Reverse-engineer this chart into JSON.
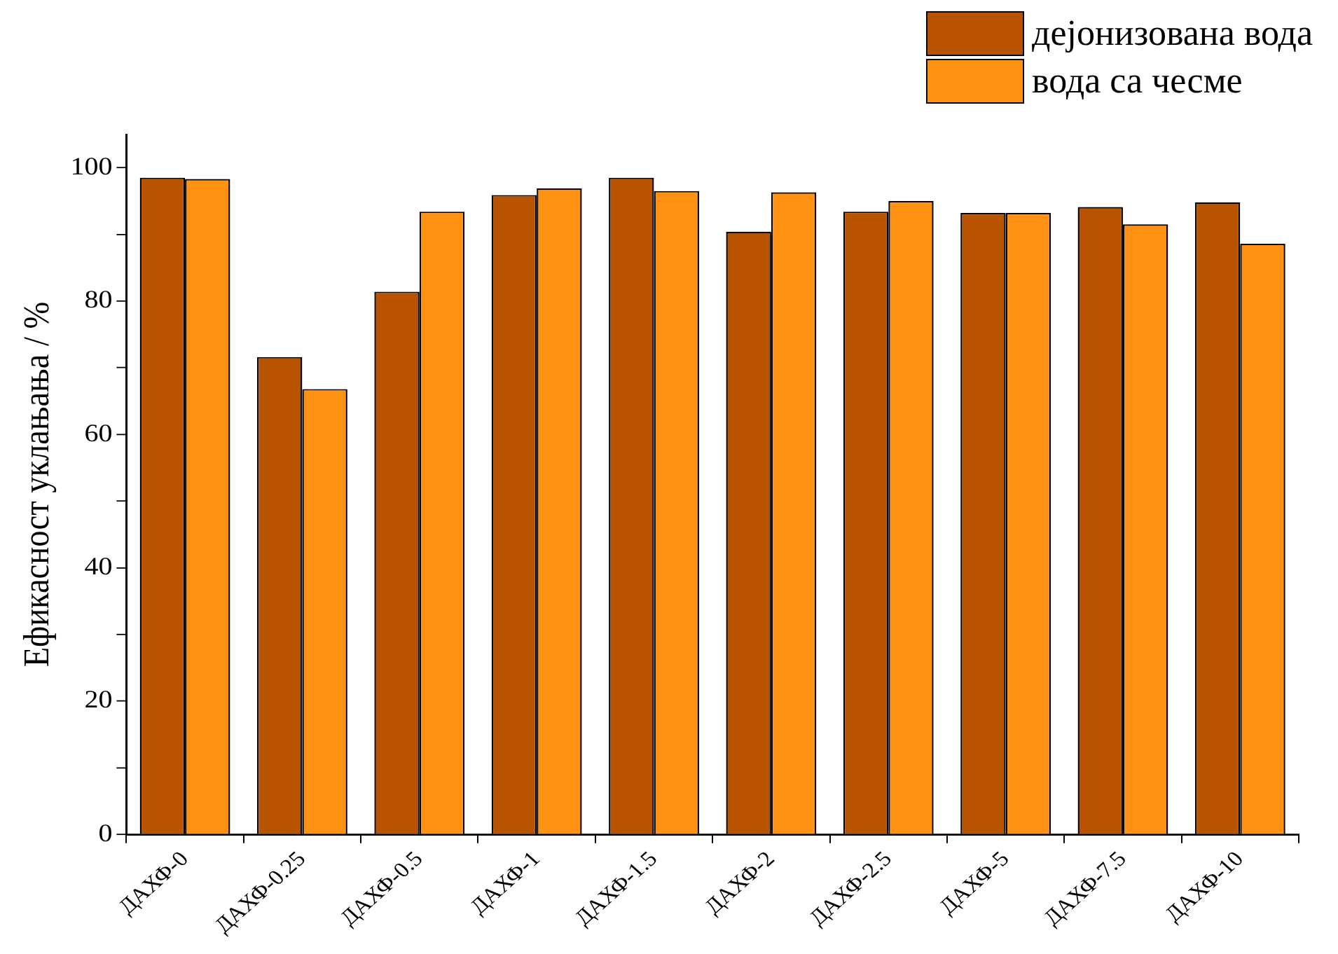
{
  "chart_data": {
    "type": "bar",
    "ylabel": "Ефикасност уклањања / %",
    "categories": [
      "ДАХФ-0",
      "ДАХФ-0.25",
      "ДАХФ-0.5",
      "ДАХФ-1",
      "ДАХФ-1.5",
      "ДАХФ-2",
      "ДАХФ-2.5",
      "ДАХФ-5",
      "ДАХФ-7.5",
      "ДАХФ-10"
    ],
    "series": [
      {
        "name": "дејонизована вода",
        "color": "#b85400",
        "values": [
          98.5,
          71.6,
          81.4,
          95.9,
          98.5,
          90.4,
          93.4,
          93.2,
          94.1,
          94.8
        ]
      },
      {
        "name": "вода са чесме",
        "color": "#ff9212",
        "values": [
          98.3,
          66.8,
          93.4,
          96.9,
          96.5,
          96.3,
          95.0,
          93.2,
          91.5,
          88.6
        ]
      }
    ],
    "ylim": [
      0,
      105
    ],
    "yticks": [
      0,
      {
        "value": 10,
        "label": null
      },
      20,
      {
        "value": 30,
        "label": null
      },
      40,
      {
        "value": 50,
        "label": null
      },
      60,
      {
        "value": 70,
        "label": null
      },
      80,
      {
        "value": 90,
        "label": null
      },
      100
    ],
    "grid": false,
    "legend": "top right"
  }
}
